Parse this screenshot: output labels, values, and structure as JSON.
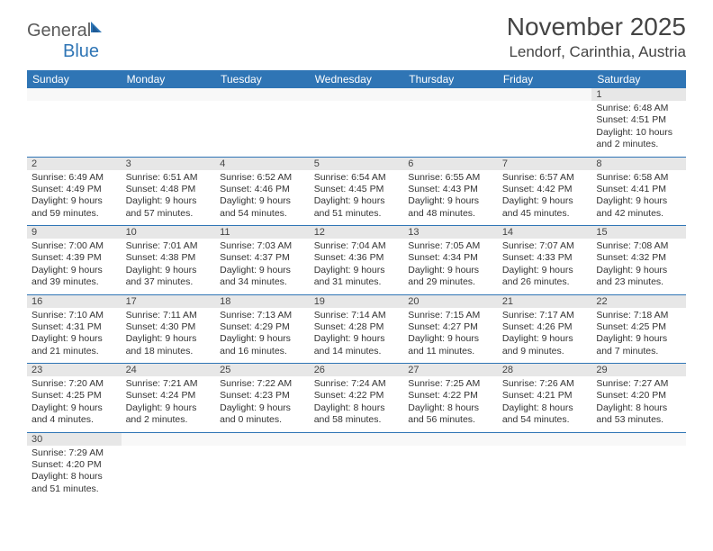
{
  "logo": {
    "text1": "General",
    "text2": "Blue"
  },
  "title": "November 2025",
  "location": "Lendorf, Carinthia, Austria",
  "colors": {
    "header_bg": "#2f75b5",
    "header_text": "#ffffff",
    "daynum_bg": "#e7e7e7",
    "rule": "#2f75b5",
    "text": "#333333"
  },
  "day_headers": [
    "Sunday",
    "Monday",
    "Tuesday",
    "Wednesday",
    "Thursday",
    "Friday",
    "Saturday"
  ],
  "weeks": [
    [
      null,
      null,
      null,
      null,
      null,
      null,
      {
        "d": "1",
        "sr": "6:48 AM",
        "ss": "4:51 PM",
        "dl": "10 hours and 2 minutes."
      }
    ],
    [
      {
        "d": "2",
        "sr": "6:49 AM",
        "ss": "4:49 PM",
        "dl": "9 hours and 59 minutes."
      },
      {
        "d": "3",
        "sr": "6:51 AM",
        "ss": "4:48 PM",
        "dl": "9 hours and 57 minutes."
      },
      {
        "d": "4",
        "sr": "6:52 AM",
        "ss": "4:46 PM",
        "dl": "9 hours and 54 minutes."
      },
      {
        "d": "5",
        "sr": "6:54 AM",
        "ss": "4:45 PM",
        "dl": "9 hours and 51 minutes."
      },
      {
        "d": "6",
        "sr": "6:55 AM",
        "ss": "4:43 PM",
        "dl": "9 hours and 48 minutes."
      },
      {
        "d": "7",
        "sr": "6:57 AM",
        "ss": "4:42 PM",
        "dl": "9 hours and 45 minutes."
      },
      {
        "d": "8",
        "sr": "6:58 AM",
        "ss": "4:41 PM",
        "dl": "9 hours and 42 minutes."
      }
    ],
    [
      {
        "d": "9",
        "sr": "7:00 AM",
        "ss": "4:39 PM",
        "dl": "9 hours and 39 minutes."
      },
      {
        "d": "10",
        "sr": "7:01 AM",
        "ss": "4:38 PM",
        "dl": "9 hours and 37 minutes."
      },
      {
        "d": "11",
        "sr": "7:03 AM",
        "ss": "4:37 PM",
        "dl": "9 hours and 34 minutes."
      },
      {
        "d": "12",
        "sr": "7:04 AM",
        "ss": "4:36 PM",
        "dl": "9 hours and 31 minutes."
      },
      {
        "d": "13",
        "sr": "7:05 AM",
        "ss": "4:34 PM",
        "dl": "9 hours and 29 minutes."
      },
      {
        "d": "14",
        "sr": "7:07 AM",
        "ss": "4:33 PM",
        "dl": "9 hours and 26 minutes."
      },
      {
        "d": "15",
        "sr": "7:08 AM",
        "ss": "4:32 PM",
        "dl": "9 hours and 23 minutes."
      }
    ],
    [
      {
        "d": "16",
        "sr": "7:10 AM",
        "ss": "4:31 PM",
        "dl": "9 hours and 21 minutes."
      },
      {
        "d": "17",
        "sr": "7:11 AM",
        "ss": "4:30 PM",
        "dl": "9 hours and 18 minutes."
      },
      {
        "d": "18",
        "sr": "7:13 AM",
        "ss": "4:29 PM",
        "dl": "9 hours and 16 minutes."
      },
      {
        "d": "19",
        "sr": "7:14 AM",
        "ss": "4:28 PM",
        "dl": "9 hours and 14 minutes."
      },
      {
        "d": "20",
        "sr": "7:15 AM",
        "ss": "4:27 PM",
        "dl": "9 hours and 11 minutes."
      },
      {
        "d": "21",
        "sr": "7:17 AM",
        "ss": "4:26 PM",
        "dl": "9 hours and 9 minutes."
      },
      {
        "d": "22",
        "sr": "7:18 AM",
        "ss": "4:25 PM",
        "dl": "9 hours and 7 minutes."
      }
    ],
    [
      {
        "d": "23",
        "sr": "7:20 AM",
        "ss": "4:25 PM",
        "dl": "9 hours and 4 minutes."
      },
      {
        "d": "24",
        "sr": "7:21 AM",
        "ss": "4:24 PM",
        "dl": "9 hours and 2 minutes."
      },
      {
        "d": "25",
        "sr": "7:22 AM",
        "ss": "4:23 PM",
        "dl": "9 hours and 0 minutes."
      },
      {
        "d": "26",
        "sr": "7:24 AM",
        "ss": "4:22 PM",
        "dl": "8 hours and 58 minutes."
      },
      {
        "d": "27",
        "sr": "7:25 AM",
        "ss": "4:22 PM",
        "dl": "8 hours and 56 minutes."
      },
      {
        "d": "28",
        "sr": "7:26 AM",
        "ss": "4:21 PM",
        "dl": "8 hours and 54 minutes."
      },
      {
        "d": "29",
        "sr": "7:27 AM",
        "ss": "4:20 PM",
        "dl": "8 hours and 53 minutes."
      }
    ],
    [
      {
        "d": "30",
        "sr": "7:29 AM",
        "ss": "4:20 PM",
        "dl": "8 hours and 51 minutes."
      },
      null,
      null,
      null,
      null,
      null,
      null
    ]
  ]
}
